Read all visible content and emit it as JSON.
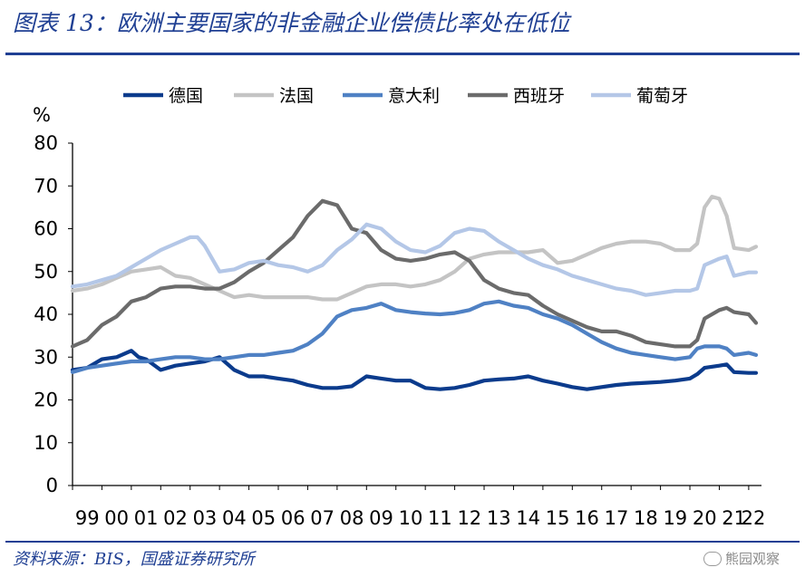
{
  "title": "图表 13：欧洲主要国家的非金融企业偿债比率处在低位",
  "source": "资料来源：BIS，国盛证券研究所",
  "watermark": "熊园观察",
  "chart_data": {
    "type": "line",
    "ylabel": "%",
    "ylim": [
      0,
      80
    ],
    "yticks": [
      "0",
      "10",
      "20",
      "30",
      "40",
      "50",
      "60",
      "70",
      "80"
    ],
    "xlim": [
      1999.0,
      2022.25
    ],
    "xticks": [
      "99",
      "00",
      "01",
      "02",
      "03",
      "04",
      "05",
      "06",
      "07",
      "08",
      "09",
      "10",
      "11",
      "12",
      "13",
      "14",
      "15",
      "16",
      "17",
      "18",
      "19",
      "20",
      "21",
      "22"
    ],
    "grid": false,
    "legend": "top",
    "series": [
      {
        "name": "德国",
        "color": "#0b3b8c",
        "x": [
          1999.0,
          1999.5,
          2000.0,
          2000.5,
          2001.0,
          2001.25,
          2001.5,
          2002.0,
          2002.5,
          2003.0,
          2003.5,
          2004.0,
          2004.5,
          2005.0,
          2005.5,
          2006.0,
          2006.5,
          2007.0,
          2007.5,
          2008.0,
          2008.5,
          2009.0,
          2009.5,
          2010.0,
          2010.5,
          2011.0,
          2011.5,
          2012.0,
          2012.5,
          2013.0,
          2013.5,
          2014.0,
          2014.5,
          2015.0,
          2015.5,
          2016.0,
          2016.5,
          2017.0,
          2017.5,
          2018.0,
          2018.5,
          2019.0,
          2019.5,
          2020.0,
          2020.25,
          2020.5,
          2021.0,
          2021.25,
          2021.5,
          2022.0,
          2022.25
        ],
        "y": [
          27,
          27.5,
          29.5,
          30,
          31.5,
          30,
          29.5,
          27,
          28,
          28.5,
          29,
          30,
          27,
          25.5,
          25.5,
          25,
          24.5,
          23.5,
          22.8,
          22.8,
          23.2,
          25.5,
          25,
          24.5,
          24.5,
          22.8,
          22.5,
          22.8,
          23.5,
          24.5,
          24.8,
          25,
          25.5,
          24.5,
          23.8,
          23,
          22.5,
          23,
          23.5,
          23.8,
          24,
          24.2,
          24.5,
          25,
          26,
          27.5,
          28,
          28.3,
          26.5,
          26.3,
          26.3
        ]
      },
      {
        "name": "法国",
        "color": "#c4c4c4",
        "x": [
          1999.0,
          1999.5,
          2000.0,
          2000.5,
          2001.0,
          2001.5,
          2002.0,
          2002.5,
          2003.0,
          2003.5,
          2004.0,
          2004.5,
          2005.0,
          2005.5,
          2006.0,
          2006.5,
          2007.0,
          2007.5,
          2008.0,
          2008.5,
          2009.0,
          2009.5,
          2010.0,
          2010.5,
          2011.0,
          2011.5,
          2012.0,
          2012.5,
          2013.0,
          2013.5,
          2014.0,
          2014.5,
          2015.0,
          2015.5,
          2016.0,
          2016.5,
          2017.0,
          2017.5,
          2018.0,
          2018.5,
          2019.0,
          2019.5,
          2020.0,
          2020.25,
          2020.5,
          2020.75,
          2021.0,
          2021.25,
          2021.5,
          2022.0,
          2022.25
        ],
        "y": [
          45.5,
          46,
          47,
          48.5,
          50,
          50.5,
          51,
          49,
          48.5,
          47,
          45.5,
          44,
          44.5,
          44,
          44,
          44,
          44,
          43.5,
          43.5,
          45,
          46.5,
          47,
          47,
          46.5,
          47,
          48,
          50,
          53,
          54,
          54.5,
          54.5,
          54.5,
          55,
          52,
          52.5,
          54,
          55.5,
          56.5,
          57,
          57,
          56.5,
          55,
          55,
          56.5,
          65,
          67.5,
          67,
          63,
          55.5,
          55,
          55.8
        ]
      },
      {
        "name": "意大利",
        "color": "#4f81c4",
        "x": [
          1999.0,
          1999.5,
          2000.0,
          2000.5,
          2001.0,
          2001.5,
          2002.0,
          2002.5,
          2003.0,
          2003.5,
          2004.0,
          2004.5,
          2005.0,
          2005.5,
          2006.0,
          2006.5,
          2007.0,
          2007.5,
          2008.0,
          2008.5,
          2009.0,
          2009.5,
          2010.0,
          2010.5,
          2011.0,
          2011.5,
          2012.0,
          2012.5,
          2013.0,
          2013.5,
          2014.0,
          2014.5,
          2015.0,
          2015.5,
          2016.0,
          2016.5,
          2017.0,
          2017.5,
          2018.0,
          2018.5,
          2019.0,
          2019.5,
          2020.0,
          2020.25,
          2020.5,
          2021.0,
          2021.25,
          2021.5,
          2022.0,
          2022.25
        ],
        "y": [
          26.5,
          27.5,
          28,
          28.5,
          29,
          29,
          29.5,
          30,
          30,
          29.5,
          29.5,
          30,
          30.5,
          30.5,
          31,
          31.5,
          33,
          35.5,
          39.5,
          41,
          41.5,
          42.5,
          41,
          40.5,
          40.2,
          40,
          40.3,
          41,
          42.5,
          43,
          42,
          41.5,
          40,
          39,
          37.5,
          35.5,
          33.5,
          32,
          31,
          30.5,
          30,
          29.5,
          30,
          32,
          32.5,
          32.5,
          32,
          30.5,
          31,
          30.5
        ]
      },
      {
        "name": "西班牙",
        "color": "#6b6b6b",
        "x": [
          1999.0,
          1999.5,
          2000.0,
          2000.5,
          2001.0,
          2001.5,
          2002.0,
          2002.5,
          2003.0,
          2003.5,
          2004.0,
          2004.5,
          2005.0,
          2005.5,
          2006.0,
          2006.5,
          2007.0,
          2007.5,
          2008.0,
          2008.5,
          2009.0,
          2009.5,
          2010.0,
          2010.5,
          2011.0,
          2011.5,
          2012.0,
          2012.5,
          2013.0,
          2013.5,
          2014.0,
          2014.5,
          2015.0,
          2015.5,
          2016.0,
          2016.5,
          2017.0,
          2017.5,
          2018.0,
          2018.5,
          2019.0,
          2019.5,
          2020.0,
          2020.25,
          2020.5,
          2021.0,
          2021.25,
          2021.5,
          2022.0,
          2022.25
        ],
        "y": [
          32.5,
          34,
          37.5,
          39.5,
          43,
          44,
          46,
          46.5,
          46.5,
          46,
          46,
          47.5,
          50,
          52,
          55,
          58,
          63,
          66.5,
          65.5,
          60,
          59,
          55,
          53,
          52.5,
          53,
          54,
          54.5,
          52.5,
          48,
          46,
          45,
          44.5,
          42,
          40,
          38.5,
          37,
          36,
          36,
          35,
          33.5,
          33,
          32.5,
          32.5,
          34,
          39,
          41,
          41.5,
          40.5,
          40,
          38
        ]
      },
      {
        "name": "葡萄牙",
        "color": "#b4c7e7",
        "x": [
          1999.0,
          1999.5,
          2000.0,
          2000.5,
          2001.0,
          2001.5,
          2002.0,
          2002.5,
          2003.0,
          2003.25,
          2003.5,
          2004.0,
          2004.5,
          2005.0,
          2005.5,
          2006.0,
          2006.5,
          2007.0,
          2007.5,
          2008.0,
          2008.5,
          2009.0,
          2009.5,
          2010.0,
          2010.5,
          2011.0,
          2011.5,
          2012.0,
          2012.5,
          2013.0,
          2013.5,
          2014.0,
          2014.5,
          2015.0,
          2015.5,
          2016.0,
          2016.5,
          2017.0,
          2017.5,
          2018.0,
          2018.5,
          2019.0,
          2019.5,
          2020.0,
          2020.25,
          2020.5,
          2021.0,
          2021.25,
          2021.5,
          2022.0,
          2022.25
        ],
        "y": [
          46.5,
          47,
          48,
          49,
          51,
          53,
          55,
          56.5,
          58,
          58,
          56,
          50,
          50.5,
          52,
          52.5,
          51.5,
          51,
          50,
          51.5,
          55,
          57.5,
          61,
          60,
          57,
          55,
          54.5,
          56,
          59,
          60,
          59.5,
          57,
          55,
          53,
          51.5,
          50.5,
          49,
          48,
          47,
          46,
          45.5,
          44.5,
          45,
          45.5,
          45.5,
          46,
          51.5,
          53,
          53.5,
          49,
          49.8,
          49.8
        ]
      }
    ]
  }
}
